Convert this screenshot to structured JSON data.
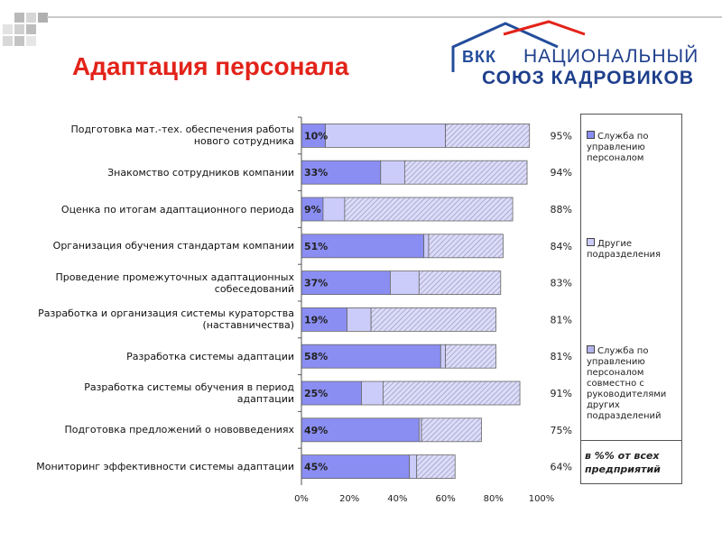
{
  "title": "Адаптация персонала",
  "logo": {
    "abbr": "ВКК",
    "line1": "НАЦИОНАЛЬНЫЙ",
    "line2": "СОЮЗ КАДРОВИКОВ"
  },
  "colors": {
    "hr": "#8a8ef2",
    "other": "#ccccfa",
    "joint": "#b4b4ec",
    "title": "#e2231a"
  },
  "legend": {
    "items": [
      "Служба по управлению персоналом",
      "Другие подразделения",
      "Служба по управлению персоналом совместно с руководителями других подразделений"
    ],
    "note": "в %% от всех предприятий"
  },
  "chart_data": {
    "type": "bar",
    "stacked": true,
    "orientation": "horizontal",
    "xlim": [
      0,
      100
    ],
    "x_ticks": [
      "0%",
      "20%",
      "40%",
      "60%",
      "80%",
      "100%"
    ],
    "categories": [
      "Подготовка мат.-тех. обеспечения работы нового сотрудника",
      "Знакомство сотрудников компании",
      "Оценка по итогам адаптационного периода",
      "Организация обучения стандартам компании",
      "Проведение промежуточных адаптационных собеседований",
      "Разработка и организация системы кураторства (наставничества)",
      "Разработка системы адаптации",
      "Разработка системы обучения в период адаптации",
      "Подготовка предложений о нововведениях",
      "Мониторинг эффективности системы адаптации"
    ],
    "series": [
      {
        "name": "Служба по управлению персоналом",
        "values": [
          10,
          33,
          9,
          51,
          37,
          19,
          58,
          25,
          49,
          45
        ]
      },
      {
        "name": "Другие подразделения",
        "values": [
          50,
          10,
          9,
          2,
          12,
          10,
          2,
          9,
          1,
          3
        ]
      },
      {
        "name": "Служба по управлению персоналом совместно с руководителями других подразделений",
        "values": [
          35,
          51,
          70,
          31,
          34,
          52,
          21,
          57,
          25,
          16
        ]
      }
    ],
    "bar_labels": [
      "10%",
      "33%",
      "9%",
      "51%",
      "37%",
      "19%",
      "58%",
      "25%",
      "49%",
      "45%"
    ],
    "totals": [
      "95%",
      "94%",
      "88%",
      "84%",
      "83%",
      "81%",
      "81%",
      "91%",
      "75%",
      "64%"
    ]
  }
}
